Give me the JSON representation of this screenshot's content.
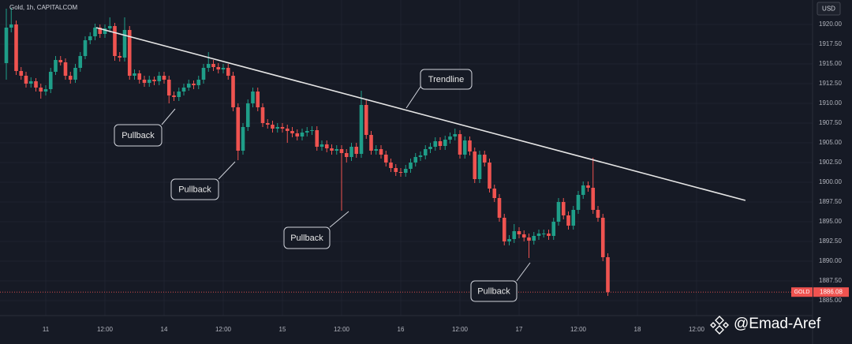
{
  "chart_data": {
    "type": "candlestick",
    "title": "Gold, 1h, CAPITALCOM",
    "currency": "USD",
    "up_color": "#1f9e89",
    "down_color": "#ef5350",
    "xlim": [
      -1.28,
      163.52
    ],
    "xticks": [
      {
        "value": 8,
        "label": "11"
      },
      {
        "value": 20,
        "label": "12:00"
      },
      {
        "value": 32,
        "label": "14"
      },
      {
        "value": 44,
        "label": "12:00"
      },
      {
        "value": 56,
        "label": "15"
      },
      {
        "value": 68,
        "label": "12:00"
      },
      {
        "value": 80,
        "label": "16"
      },
      {
        "value": 92,
        "label": "12:00"
      },
      {
        "value": 104,
        "label": "17"
      },
      {
        "value": 116,
        "label": "12:00"
      },
      {
        "value": 128,
        "label": "18"
      },
      {
        "value": 140,
        "label": "12:00"
      }
    ],
    "ylim": [
      1883.1,
      1923.1
    ],
    "yticks": [
      {
        "value": 1885,
        "label": "1885.00"
      },
      {
        "value": 1887.5,
        "label": "1887.50"
      },
      {
        "value": 1890,
        "label": "1890.00"
      },
      {
        "value": 1892.5,
        "label": "1892.50"
      },
      {
        "value": 1895,
        "label": "1895.00"
      },
      {
        "value": 1897.5,
        "label": "1897.50"
      },
      {
        "value": 1900,
        "label": "1900.00"
      },
      {
        "value": 1902.5,
        "label": "1902.50"
      },
      {
        "value": 1905,
        "label": "1905.00"
      },
      {
        "value": 1907.5,
        "label": "1907.50"
      },
      {
        "value": 1910,
        "label": "1910.00"
      },
      {
        "value": 1912.5,
        "label": "1912.50"
      },
      {
        "value": 1915,
        "label": "1915.00"
      },
      {
        "value": 1917.5,
        "label": "1917.50"
      },
      {
        "value": 1920,
        "label": "1920.00"
      }
    ],
    "open": [
      1915.1,
      1919.6,
      1920.0,
      1914.1,
      1913.5,
      1912.5,
      1912.8,
      1912.0,
      1911.5,
      1911.8,
      1914.0,
      1915.5,
      1915.2,
      1913.5,
      1913.0,
      1914.5,
      1916.0,
      1918.0,
      1918.5,
      1919.6,
      1918.8,
      1919.5,
      1919.8,
      1916.0,
      1915.8,
      1919.3,
      1913.5,
      1913.8,
      1913.0,
      1912.6,
      1913.0,
      1912.8,
      1913.5,
      1913.0,
      1911.0,
      1910.8,
      1911.5,
      1912.0,
      1912.5,
      1912.3,
      1913.0,
      1914.5,
      1915.0,
      1914.6,
      1914.3,
      1914.5,
      1913.5,
      1909.5,
      1904.0,
      1907.0,
      1910.0,
      1911.5,
      1909.5,
      1907.5,
      1907.3,
      1906.8,
      1907.0,
      1906.8,
      1906.5,
      1906.2,
      1905.8,
      1906.3,
      1906.5,
      1906.6,
      1904.5,
      1904.8,
      1904.3,
      1904.0,
      1904.2,
      1903.7,
      1903.2,
      1904.5,
      1903.6,
      1909.8,
      1906.0,
      1904.0,
      1904.2,
      1903.5,
      1902.5,
      1901.8,
      1901.3,
      1901.2,
      1901.7,
      1902.5,
      1903.2,
      1903.4,
      1904.2,
      1904.5,
      1905.2,
      1904.6,
      1905.4,
      1905.8,
      1906.1,
      1903.5,
      1905.3,
      1903.9,
      1900.4,
      1903.5,
      1902.5,
      1899.2,
      1898.0,
      1895.5,
      1892.5,
      1892.8,
      1893.8,
      1893.4,
      1893.0,
      1892.6,
      1893.2,
      1893.5,
      1893.5,
      1893.2,
      1895.0,
      1897.5,
      1895.8,
      1894.5,
      1896.5,
      1898.4,
      1899.6,
      1899.3,
      1896.5,
      1895.5,
      1890.5
    ],
    "high": [
      1922.0,
      1922.1,
      1920.5,
      1914.6,
      1914.0,
      1913.3,
      1913.2,
      1912.5,
      1912.3,
      1914.5,
      1916.0,
      1916.0,
      1915.7,
      1914.0,
      1915.0,
      1916.5,
      1918.5,
      1919.0,
      1920.1,
      1920.0,
      1920.0,
      1920.9,
      1920.2,
      1916.5,
      1920.9,
      1919.8,
      1914.3,
      1914.2,
      1913.5,
      1913.5,
      1913.4,
      1914.0,
      1914.0,
      1913.5,
      1911.5,
      1912.0,
      1912.5,
      1913.0,
      1912.9,
      1913.5,
      1915.0,
      1916.5,
      1915.5,
      1915.1,
      1915.0,
      1915.0,
      1914.0,
      1910.0,
      1907.5,
      1910.5,
      1912.0,
      1912.0,
      1910.0,
      1908.0,
      1907.8,
      1907.5,
      1907.5,
      1907.3,
      1907.0,
      1906.7,
      1906.8,
      1907.0,
      1907.1,
      1907.1,
      1905.3,
      1905.3,
      1904.8,
      1904.7,
      1904.7,
      1904.2,
      1905.0,
      1905.0,
      1911.6,
      1910.5,
      1906.5,
      1904.7,
      1904.7,
      1904.0,
      1903.0,
      1902.3,
      1901.8,
      1902.2,
      1903.0,
      1903.7,
      1903.9,
      1904.7,
      1905.0,
      1905.7,
      1905.7,
      1905.9,
      1906.3,
      1906.8,
      1906.6,
      1905.8,
      1905.8,
      1904.4,
      1904.0,
      1904.0,
      1903.0,
      1899.7,
      1898.5,
      1896.0,
      1893.3,
      1894.7,
      1894.3,
      1893.9,
      1893.5,
      1893.7,
      1894.0,
      1894.0,
      1894.0,
      1895.5,
      1898.0,
      1898.0,
      1896.3,
      1897.0,
      1898.9,
      1900.1,
      1900.1,
      1903.1,
      1897.0,
      1896.0,
      1891.0
    ],
    "low": [
      1913.0,
      1919.0,
      1913.6,
      1913.0,
      1912.0,
      1912.0,
      1911.5,
      1910.6,
      1911.0,
      1911.3,
      1913.6,
      1914.8,
      1913.0,
      1912.5,
      1912.6,
      1914.0,
      1915.6,
      1917.5,
      1918.0,
      1918.3,
      1918.3,
      1919.0,
      1915.4,
      1915.3,
      1915.3,
      1913.0,
      1913.0,
      1912.5,
      1912.1,
      1912.1,
      1912.3,
      1912.3,
      1912.5,
      1910.0,
      1910.3,
      1910.3,
      1911.0,
      1911.6,
      1911.8,
      1911.8,
      1912.5,
      1914.0,
      1914.1,
      1913.8,
      1913.8,
      1913.0,
      1909.0,
      1902.8,
      1903.5,
      1906.5,
      1909.5,
      1909.0,
      1907.0,
      1906.8,
      1906.3,
      1906.3,
      1906.3,
      1905.0,
      1905.7,
      1905.3,
      1905.3,
      1905.8,
      1906.0,
      1904.0,
      1904.0,
      1903.8,
      1903.5,
      1903.5,
      1896.4,
      1902.5,
      1902.7,
      1903.1,
      1903.1,
      1905.5,
      1903.5,
      1903.5,
      1903.0,
      1902.0,
      1901.3,
      1900.8,
      1900.7,
      1900.7,
      1901.2,
      1902.0,
      1902.7,
      1902.9,
      1903.7,
      1904.0,
      1904.1,
      1904.1,
      1904.9,
      1905.3,
      1903.0,
      1903.0,
      1903.4,
      1899.9,
      1899.9,
      1902.0,
      1898.7,
      1897.5,
      1895.0,
      1892.0,
      1892.0,
      1892.3,
      1892.9,
      1892.5,
      1890.4,
      1892.1,
      1892.7,
      1893.0,
      1892.7,
      1892.7,
      1894.5,
      1895.3,
      1894.0,
      1894.0,
      1896.0,
      1897.9,
      1898.8,
      1896.0,
      1895.0,
      1890.0,
      1885.6
    ],
    "close": [
      1919.6,
      1920.0,
      1914.1,
      1913.5,
      1912.5,
      1912.8,
      1912.0,
      1911.5,
      1911.8,
      1914.0,
      1915.5,
      1915.2,
      1913.5,
      1913.0,
      1914.5,
      1916.0,
      1918.0,
      1918.5,
      1919.6,
      1918.8,
      1919.5,
      1919.8,
      1916.0,
      1915.8,
      1919.3,
      1913.5,
      1913.8,
      1913.0,
      1912.6,
      1913.0,
      1912.8,
      1913.5,
      1913.0,
      1911.0,
      1910.8,
      1911.5,
      1912.0,
      1912.5,
      1912.3,
      1913.0,
      1914.5,
      1915.0,
      1914.6,
      1914.3,
      1914.5,
      1913.5,
      1909.5,
      1904.0,
      1907.0,
      1910.0,
      1911.5,
      1909.5,
      1907.5,
      1907.3,
      1906.8,
      1907.0,
      1906.8,
      1906.5,
      1906.2,
      1905.8,
      1906.3,
      1906.5,
      1906.6,
      1904.5,
      1904.8,
      1904.3,
      1904.0,
      1904.2,
      1903.7,
      1903.2,
      1904.5,
      1903.6,
      1909.8,
      1906.0,
      1904.0,
      1904.2,
      1903.5,
      1902.5,
      1901.8,
      1901.3,
      1901.2,
      1901.7,
      1902.5,
      1903.2,
      1903.4,
      1904.2,
      1904.5,
      1905.2,
      1904.6,
      1905.4,
      1905.8,
      1906.1,
      1903.5,
      1905.3,
      1903.9,
      1900.4,
      1903.5,
      1902.5,
      1899.2,
      1898.0,
      1895.5,
      1892.5,
      1892.8,
      1893.8,
      1893.4,
      1893.0,
      1892.6,
      1893.2,
      1893.5,
      1893.5,
      1893.2,
      1895.0,
      1897.5,
      1895.8,
      1894.5,
      1896.5,
      1898.4,
      1899.6,
      1899.3,
      1896.5,
      1895.5,
      1890.5,
      1886.08
    ],
    "price_tag": {
      "symbol": "GOLD",
      "value": 1886.08,
      "color": "#ef5350"
    },
    "trendline": {
      "label": "Trendline",
      "x": [
        18.2,
        149.9
      ],
      "y": [
        1919.6,
        1897.7
      ],
      "color": "#e6e6e6"
    },
    "annotations": [
      "Pullback",
      "Pullback",
      "Pullback",
      "Pullback"
    ],
    "watermark": "@Emad-Aref"
  }
}
